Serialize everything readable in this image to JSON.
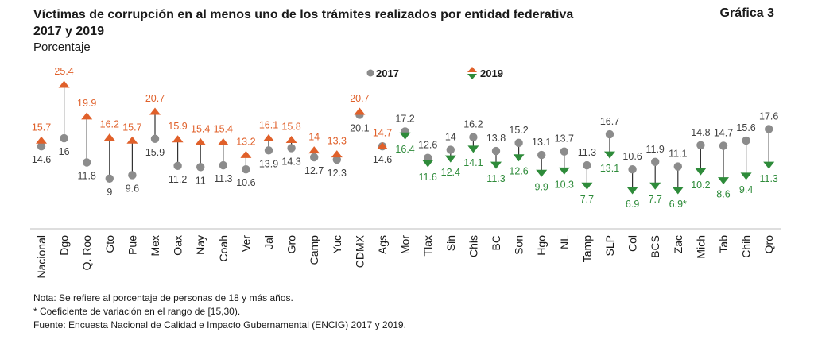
{
  "header": {
    "title_line1": "Víctimas de corrupción en al menos uno de los trámites realizados por entidad federativa",
    "title_line2": "2017 y 2019",
    "figure_label": "Gráfica 3",
    "unit": "Porcentaje"
  },
  "notes": {
    "note": "Nota: Se refiere al porcentaje de personas de 18 y más años.",
    "cv": "* Coeficiente de variación en el rango de [15,30).",
    "source": "Fuente: Encuesta Nacional de Calidad e Impacto Gubernamental (ENCIG) 2017 y 2019."
  },
  "colors": {
    "s2017": "#8c8c8c",
    "up": "#e0602a",
    "down": "#2e8b3a",
    "label_2017": "#404040",
    "stem": "#333333"
  },
  "chart_data": {
    "type": "dot",
    "title": "Víctimas de corrupción en al menos uno de los trámites realizados por entidad federativa 2017 y 2019",
    "ylabel": "Porcentaje",
    "ylim": [
      0,
      26
    ],
    "grid": false,
    "legend_placement": "top",
    "categories": [
      "Nacional",
      "Dgo",
      "Q. Roo",
      "Gto",
      "Pue",
      "Mex",
      "Oax",
      "Nay",
      "Coah",
      "Ver",
      "Jal",
      "Gro",
      "Camp",
      "Yuc",
      "CDMX",
      "Ags",
      "Mor",
      "Tlax",
      "Sin",
      "Chis",
      "BC",
      "Son",
      "Hgo",
      "NL",
      "Tamp",
      "SLP",
      "Col",
      "BCS",
      "Zac",
      "Mich",
      "Tab",
      "Chih",
      "Qro"
    ],
    "series": [
      {
        "name": "2017",
        "values": [
          14.6,
          16,
          11.8,
          9,
          9.6,
          15.9,
          11.2,
          11,
          11.3,
          10.6,
          13.9,
          14.3,
          12.7,
          12.3,
          20.1,
          14.6,
          17.2,
          12.6,
          14,
          16.2,
          13.8,
          15.2,
          13.1,
          13.7,
          11.3,
          16.7,
          10.6,
          11.9,
          11.1,
          14.8,
          14.7,
          15.6,
          17.6
        ]
      },
      {
        "name": "2019",
        "values": [
          15.7,
          25.4,
          19.9,
          16.2,
          15.7,
          20.7,
          15.9,
          15.4,
          15.4,
          13.2,
          16.1,
          15.8,
          14,
          13.3,
          20.7,
          14.7,
          16.4,
          11.6,
          12.4,
          14.1,
          11.3,
          12.6,
          9.9,
          10.3,
          7.7,
          13.1,
          6.9,
          7.7,
          6.9,
          10.2,
          8.6,
          9.4,
          11.3
        ]
      }
    ],
    "label_2017": [
      "14.6",
      "16",
      "11.8",
      "9",
      "9.6",
      "15.9",
      "11.2",
      "11",
      "11.3",
      "10.6",
      "13.9",
      "14.3",
      "12.7",
      "12.3",
      "20.1",
      "14.6",
      "17.2",
      "12.6",
      "14",
      "16.2",
      "13.8",
      "15.2",
      "13.1",
      "13.7",
      "11.3",
      "16.7",
      "10.6",
      "11.9",
      "11.1",
      "14.8",
      "14.7",
      "15.6",
      "17.6"
    ],
    "label_2019": [
      "15.7",
      "25.4",
      "19.9",
      "16.2",
      "15.7",
      "20.7",
      "15.9",
      "15.4",
      "15.4",
      "13.2",
      "16.1",
      "15.8",
      "14",
      "13.3",
      "20.7",
      "14.7",
      "16.4",
      "11.6",
      "12.4",
      "14.1",
      "11.3",
      "12.6",
      "9.9",
      "10.3",
      "7.7",
      "13.1",
      "6.9",
      "7.7",
      "6.9*",
      "10.2",
      "8.6",
      "9.4",
      "11.3"
    ]
  }
}
